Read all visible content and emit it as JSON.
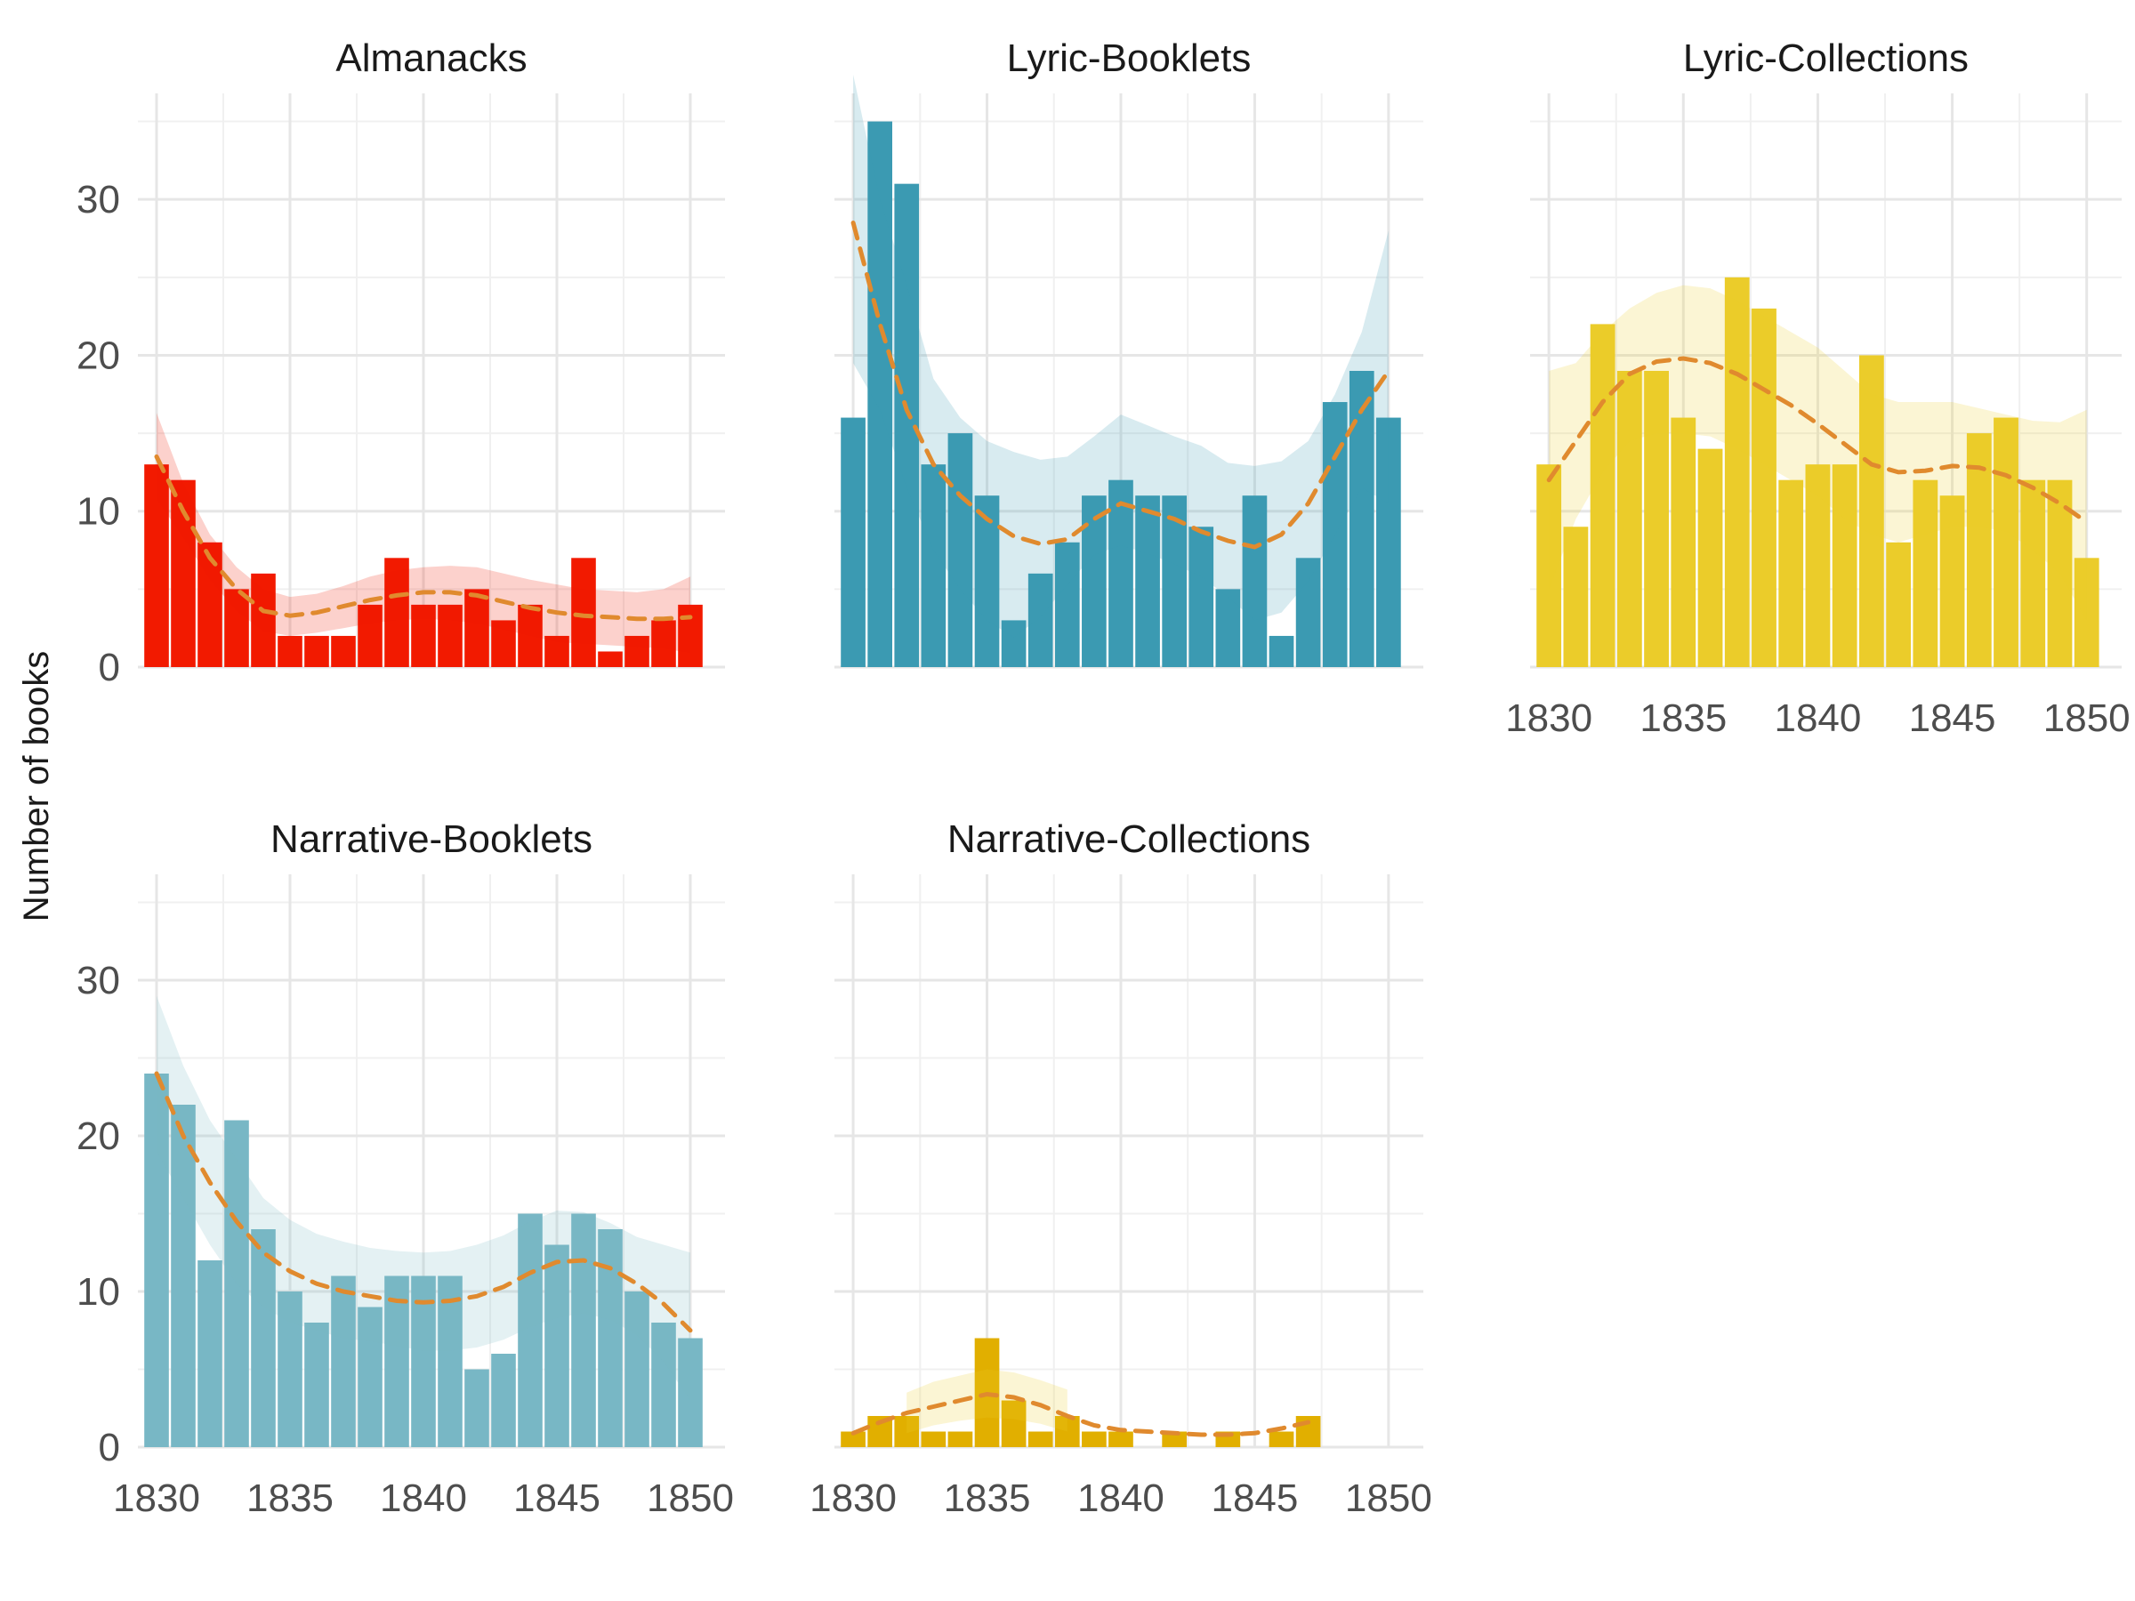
{
  "chart_data": {
    "type": "bar",
    "ylabel": "Number of books",
    "xlabel": "",
    "xlim": [
      1829.3,
      1851.3
    ],
    "ylim": [
      0,
      35
    ],
    "x_ticks": [
      1830,
      1835,
      1840,
      1845,
      1850
    ],
    "y_ticks": [
      0,
      10,
      20,
      30
    ],
    "x_tick_labels": [
      "1830",
      "1835",
      "1840",
      "1845",
      "1850"
    ],
    "y_tick_labels": [
      "0",
      "10",
      "20",
      "30"
    ],
    "trend_color": "#E08A2E",
    "grid": true,
    "panels": [
      {
        "title": "Almanacks",
        "color": "#F21A00",
        "band_color": "#F21A00",
        "years": [
          1830,
          1831,
          1832,
          1833,
          1834,
          1835,
          1836,
          1837,
          1838,
          1839,
          1840,
          1841,
          1842,
          1843,
          1844,
          1845,
          1846,
          1847,
          1848,
          1849,
          1850
        ],
        "values": [
          13,
          12,
          8,
          5,
          6,
          2,
          2,
          2,
          4,
          7,
          4,
          4,
          5,
          3,
          4,
          2,
          7,
          1,
          2,
          3,
          4
        ],
        "trend": [
          13.5,
          10.0,
          7.0,
          5.0,
          3.6,
          3.3,
          3.5,
          3.9,
          4.3,
          4.6,
          4.8,
          4.8,
          4.6,
          4.2,
          3.8,
          3.5,
          3.3,
          3.2,
          3.1,
          3.1,
          3.2
        ],
        "band_low": [
          10.8,
          8.3,
          5.6,
          3.6,
          2.3,
          2.0,
          2.2,
          2.5,
          2.8,
          3.0,
          3.1,
          3.0,
          2.8,
          2.4,
          2.0,
          1.6,
          1.5,
          1.4,
          1.3,
          1.2,
          0.9
        ],
        "band_high": [
          16.3,
          11.8,
          8.5,
          6.4,
          5.0,
          4.5,
          4.7,
          5.2,
          5.8,
          6.2,
          6.4,
          6.5,
          6.4,
          6.0,
          5.6,
          5.3,
          5.0,
          4.9,
          4.8,
          5.0,
          5.8
        ],
        "show_x_labels": false,
        "show_y_labels": true
      },
      {
        "title": "Lyric-Booklets",
        "color": "#3B9AB2",
        "band_color": "#3B9AB2",
        "years": [
          1830,
          1831,
          1832,
          1833,
          1834,
          1835,
          1836,
          1837,
          1838,
          1839,
          1840,
          1841,
          1842,
          1843,
          1844,
          1845,
          1846,
          1847,
          1848,
          1849,
          1850
        ],
        "values": [
          16,
          35,
          31,
          13,
          15,
          11,
          3,
          6,
          8,
          11,
          12,
          11,
          11,
          9,
          5,
          11,
          2,
          7,
          17,
          19,
          16
        ],
        "trend": [
          28.5,
          22.0,
          16.5,
          13.0,
          11.0,
          9.5,
          8.4,
          7.9,
          8.2,
          9.5,
          10.5,
          10.0,
          9.5,
          8.7,
          8.1,
          7.7,
          8.5,
          10.5,
          13.5,
          16.5,
          19.0
        ],
        "band_low": [
          19.5,
          16.5,
          11.5,
          7.5,
          5.0,
          3.0,
          1.9,
          3.2,
          5.3,
          7.2,
          7.8,
          7.3,
          6.6,
          5.8,
          4.5,
          3.0,
          3.5,
          5.5,
          8.5,
          11.5,
          10.5
        ],
        "band_high": [
          38.0,
          30.0,
          24.5,
          18.5,
          16.0,
          14.5,
          13.8,
          13.3,
          13.5,
          14.8,
          16.2,
          15.5,
          14.8,
          14.2,
          13.1,
          12.9,
          13.2,
          14.5,
          17.5,
          21.5,
          28.0
        ],
        "show_x_labels": false,
        "show_y_labels": false
      },
      {
        "title": "Lyric-Collections",
        "color": "#EBCC2A",
        "band_color": "#EBCC2A",
        "years": [
          1830,
          1831,
          1832,
          1833,
          1834,
          1835,
          1836,
          1837,
          1838,
          1839,
          1840,
          1841,
          1842,
          1843,
          1844,
          1845,
          1846,
          1847,
          1848,
          1849,
          1850
        ],
        "values": [
          13,
          9,
          22,
          19,
          19,
          16,
          14,
          25,
          23,
          12,
          13,
          13,
          20,
          8,
          12,
          11,
          15,
          16,
          12,
          12,
          7
        ],
        "trend": [
          12.0,
          14.5,
          17.0,
          18.8,
          19.6,
          19.8,
          19.5,
          18.8,
          17.8,
          16.8,
          15.6,
          14.3,
          13.0,
          12.5,
          12.6,
          12.9,
          12.8,
          12.3,
          11.5,
          10.5,
          9.3
        ],
        "band_low": [
          5.0,
          9.5,
          12.5,
          14.5,
          15.0,
          15.0,
          14.8,
          14.0,
          13.0,
          12.0,
          11.0,
          9.5,
          8.5,
          8.0,
          8.5,
          9.0,
          9.0,
          8.7,
          7.5,
          6.0,
          3.0
        ],
        "band_high": [
          19.0,
          19.5,
          21.5,
          23.0,
          24.0,
          24.5,
          24.3,
          23.5,
          22.5,
          21.5,
          20.5,
          19.0,
          17.5,
          17.0,
          17.0,
          17.0,
          16.6,
          16.2,
          15.8,
          15.7,
          16.5
        ],
        "show_x_labels": true,
        "show_y_labels": false
      },
      {
        "title": "Narrative-Booklets",
        "color": "#78B7C5",
        "band_color": "#78B7C5",
        "years": [
          1830,
          1831,
          1832,
          1833,
          1834,
          1835,
          1836,
          1837,
          1838,
          1839,
          1840,
          1841,
          1842,
          1843,
          1844,
          1845,
          1846,
          1847,
          1848,
          1849,
          1850
        ],
        "values": [
          24,
          22,
          12,
          21,
          14,
          10,
          8,
          11,
          9,
          11,
          11,
          11,
          5,
          6,
          15,
          13,
          15,
          14,
          10,
          8,
          7
        ],
        "trend": [
          24.0,
          20.0,
          17.0,
          14.5,
          12.5,
          11.3,
          10.5,
          10.0,
          9.7,
          9.4,
          9.3,
          9.4,
          9.7,
          10.3,
          11.2,
          11.9,
          12.0,
          11.5,
          10.5,
          9.2,
          7.5
        ],
        "band_low": [
          19.0,
          16.0,
          13.0,
          10.5,
          9.0,
          8.0,
          7.5,
          7.0,
          6.8,
          6.5,
          6.2,
          6.2,
          6.4,
          6.9,
          7.7,
          8.3,
          8.6,
          8.2,
          7.2,
          5.5,
          3.0
        ],
        "band_high": [
          29.0,
          24.5,
          21.0,
          18.5,
          16.0,
          14.6,
          13.7,
          13.2,
          12.8,
          12.6,
          12.5,
          12.6,
          13.0,
          13.6,
          14.5,
          15.2,
          15.1,
          14.4,
          13.5,
          13.0,
          12.5
        ],
        "show_x_labels": true,
        "show_y_labels": true
      },
      {
        "title": "Narrative-Collections",
        "color": "#E1AF00",
        "band_color": "#EBCC2A",
        "years": [
          1830,
          1831,
          1832,
          1833,
          1834,
          1835,
          1836,
          1837,
          1838,
          1839,
          1840,
          1841,
          1842,
          1843,
          1844,
          1845,
          1846,
          1847,
          1848,
          1849,
          1850
        ],
        "values": [
          1,
          2,
          2,
          1,
          1,
          7,
          3,
          1,
          2,
          1,
          1,
          0,
          1,
          0,
          1,
          0,
          1,
          2,
          0,
          0,
          0
        ],
        "trend": [
          0.9,
          1.6,
          2.2,
          2.6,
          3.0,
          3.4,
          3.2,
          2.7,
          2.0,
          1.4,
          1.1,
          1.0,
          0.9,
          0.8,
          0.8,
          0.9,
          1.2,
          1.6,
          null,
          null,
          null
        ],
        "band_low": [
          null,
          null,
          0.9,
          1.4,
          1.7,
          1.9,
          1.8,
          1.5,
          1.0,
          null,
          null,
          null,
          null,
          null,
          null,
          null,
          null,
          null,
          null,
          null,
          null
        ],
        "band_high": [
          null,
          null,
          3.5,
          4.2,
          4.6,
          5.0,
          4.8,
          4.3,
          3.7,
          null,
          null,
          null,
          null,
          null,
          null,
          null,
          null,
          null,
          null,
          null,
          null
        ],
        "show_x_labels": true,
        "show_y_labels": false
      }
    ]
  }
}
